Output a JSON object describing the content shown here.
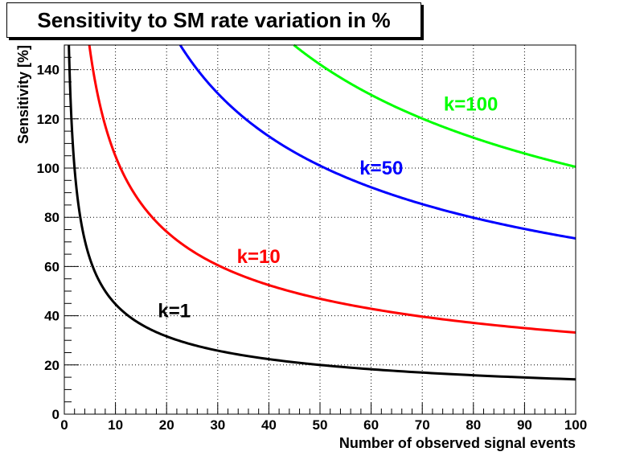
{
  "chart_data": {
    "type": "line",
    "title": "Sensitivity to SM rate variation in %",
    "xlabel": "Number of observed signal events",
    "ylabel": "Sensitivity [%]",
    "xlim": [
      0,
      100
    ],
    "ylim": [
      0,
      150
    ],
    "x_ticks": [
      0,
      10,
      20,
      30,
      40,
      50,
      60,
      70,
      80,
      90,
      100
    ],
    "y_ticks": [
      0,
      20,
      40,
      60,
      80,
      100,
      120,
      140
    ],
    "grid": true,
    "series": [
      {
        "name": "k=1",
        "color": "#000000",
        "coefficient": 141.4,
        "label_at": [
          21.5,
          42
        ]
      },
      {
        "name": "k=10",
        "color": "#ff0000",
        "coefficient": 331.7,
        "label_at": [
          38,
          64
        ]
      },
      {
        "name": "k=50",
        "color": "#0000ff",
        "coefficient": 714.1,
        "label_at": [
          62,
          100
        ]
      },
      {
        "name": "k=100",
        "color": "#00ff00",
        "coefficient": 1004.99,
        "label_at": [
          79.5,
          126
        ]
      }
    ]
  }
}
